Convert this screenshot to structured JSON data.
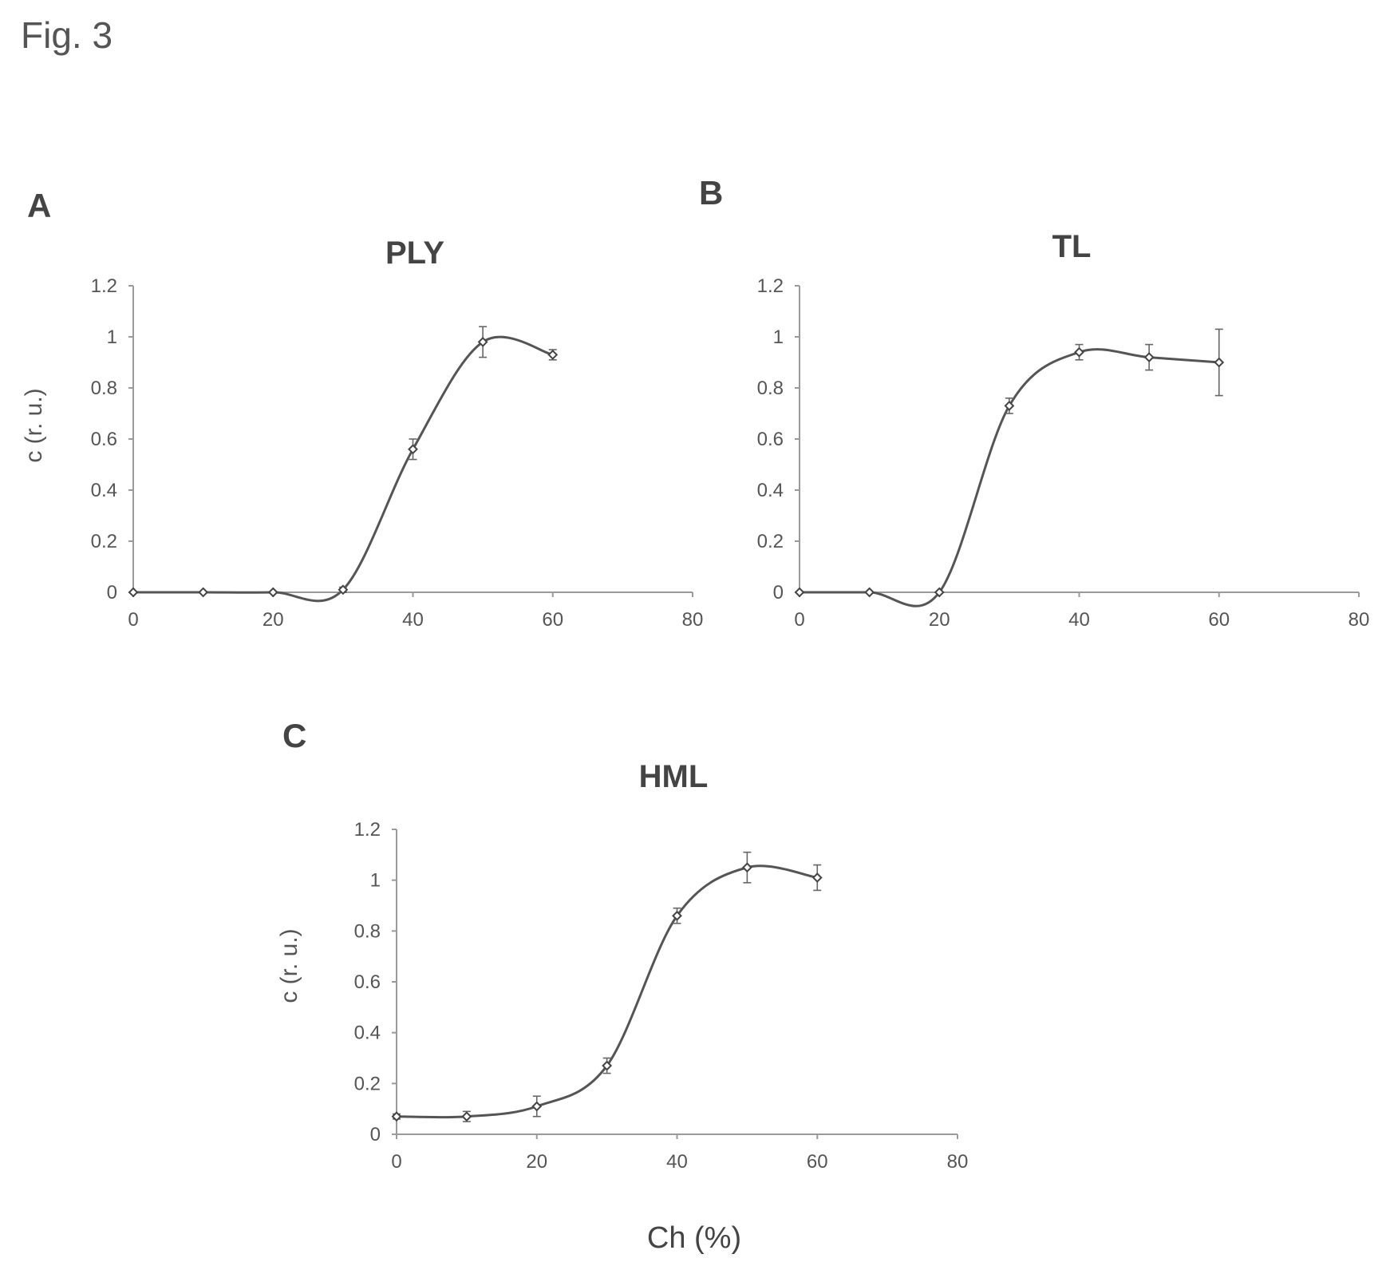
{
  "figure": {
    "label": "Fig. 3",
    "shared_xlabel": "Ch (%)"
  },
  "chart_data": [
    {
      "panel": "A",
      "type": "line",
      "title": "PLY",
      "xlabel": "",
      "ylabel": "c (r. u.)",
      "xlim": [
        0,
        80
      ],
      "ylim": [
        0,
        1.2
      ],
      "xticks": [
        0,
        20,
        40,
        60,
        80
      ],
      "yticks": [
        0,
        0.2,
        0.4,
        0.6,
        0.8,
        1,
        1.2
      ],
      "xtick_labels": [
        "0",
        "20",
        "40",
        "60",
        "80"
      ],
      "ytick_labels": [
        "0",
        "0.2",
        "0.4",
        "0.6",
        "0.8",
        "1",
        "1.2"
      ],
      "grid": false,
      "series": [
        {
          "x": [
            0,
            10,
            20,
            30,
            40,
            50,
            60
          ],
          "y": [
            0,
            0,
            0,
            0.01,
            0.56,
            0.98,
            0.93
          ],
          "err": [
            0,
            0,
            0,
            0.01,
            0.04,
            0.06,
            0.02
          ]
        }
      ]
    },
    {
      "panel": "B",
      "type": "line",
      "title": "TL",
      "xlabel": "",
      "ylabel": "",
      "xlim": [
        0,
        80
      ],
      "ylim": [
        0,
        1.2
      ],
      "xticks": [
        0,
        20,
        40,
        60,
        80
      ],
      "yticks": [
        0,
        0.2,
        0.4,
        0.6,
        0.8,
        1,
        1.2
      ],
      "xtick_labels": [
        "0",
        "20",
        "40",
        "60",
        "80"
      ],
      "ytick_labels": [
        "0",
        "0.2",
        "0.4",
        "0.6",
        "0.8",
        "1",
        "1.2"
      ],
      "grid": false,
      "series": [
        {
          "x": [
            0,
            10,
            20,
            30,
            40,
            50,
            60
          ],
          "y": [
            0,
            0,
            0,
            0.73,
            0.94,
            0.92,
            0.9
          ],
          "err": [
            0,
            0,
            0,
            0.03,
            0.03,
            0.05,
            0.13
          ]
        }
      ]
    },
    {
      "panel": "C",
      "type": "line",
      "title": "HML",
      "xlabel": "",
      "ylabel": "c (r. u.)",
      "xlim": [
        0,
        80
      ],
      "ylim": [
        0,
        1.2
      ],
      "xticks": [
        0,
        20,
        40,
        60,
        80
      ],
      "yticks": [
        0,
        0.2,
        0.4,
        0.6,
        0.8,
        1,
        1.2
      ],
      "xtick_labels": [
        "0",
        "20",
        "40",
        "60",
        "80"
      ],
      "ytick_labels": [
        "0",
        "0.2",
        "0.4",
        "0.6",
        "0.8",
        "1",
        "1.2"
      ],
      "grid": false,
      "series": [
        {
          "x": [
            0,
            10,
            20,
            30,
            40,
            50,
            60
          ],
          "y": [
            0.07,
            0.07,
            0.11,
            0.27,
            0.86,
            1.05,
            1.01
          ],
          "err": [
            0.01,
            0.02,
            0.04,
            0.03,
            0.03,
            0.06,
            0.05
          ]
        }
      ]
    }
  ]
}
